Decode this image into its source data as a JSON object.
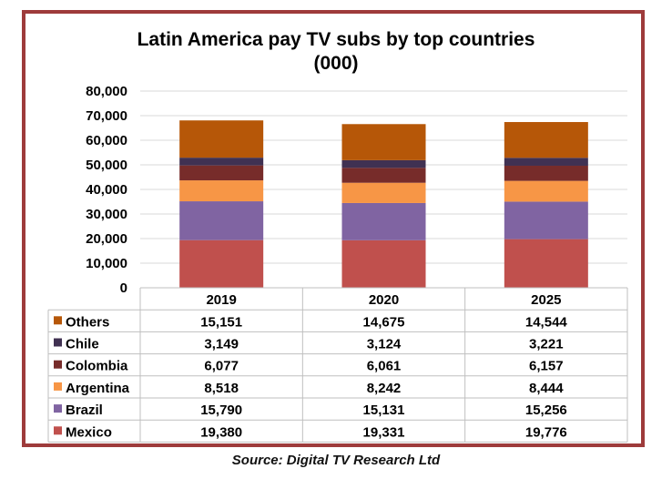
{
  "chart_data": {
    "type": "bar",
    "stacked": true,
    "title_lines": [
      "Latin America pay TV subs by top countries",
      "(000)"
    ],
    "categories": [
      "2019",
      "2020",
      "2025"
    ],
    "ylim": [
      0,
      80000
    ],
    "yticks": [
      "80,000",
      "70,000",
      "60,000",
      "50,000",
      "40,000",
      "30,000",
      "20,000",
      "10,000",
      "0"
    ],
    "ytick_values": [
      80000,
      70000,
      60000,
      50000,
      40000,
      30000,
      20000,
      10000,
      0
    ],
    "grid": true,
    "series": [
      {
        "name": "Mexico",
        "color": "#c0504d",
        "values": [
          19380,
          19331,
          19776
        ],
        "labels": [
          "19,380",
          "19,331",
          "19,776"
        ]
      },
      {
        "name": "Brazil",
        "color": "#8064a2",
        "values": [
          15790,
          15131,
          15256
        ],
        "labels": [
          "15,790",
          "15,131",
          "15,256"
        ]
      },
      {
        "name": "Argentina",
        "color": "#f79646",
        "values": [
          8518,
          8242,
          8444
        ],
        "labels": [
          "8,518",
          "8,242",
          "8,444"
        ]
      },
      {
        "name": "Colombia",
        "color": "#772c2a",
        "values": [
          6077,
          6061,
          6157
        ],
        "labels": [
          "6,077",
          "6,061",
          "6,157"
        ]
      },
      {
        "name": "Chile",
        "color": "#403152",
        "values": [
          3149,
          3124,
          3221
        ],
        "labels": [
          "3,149",
          "3,124",
          "3,221"
        ]
      },
      {
        "name": "Others",
        "color": "#b65708",
        "values": [
          15151,
          14675,
          14544
        ],
        "labels": [
          "15,151",
          "14,675",
          "14,544"
        ]
      }
    ],
    "table_row_order": [
      "Others",
      "Chile",
      "Colombia",
      "Argentina",
      "Brazil",
      "Mexico"
    ]
  },
  "source": "Source: Digital TV Research Ltd",
  "colors": {
    "frame": "#9e3b3b",
    "grid": "#d9d9d9",
    "table_border": "#bfbfbf"
  }
}
